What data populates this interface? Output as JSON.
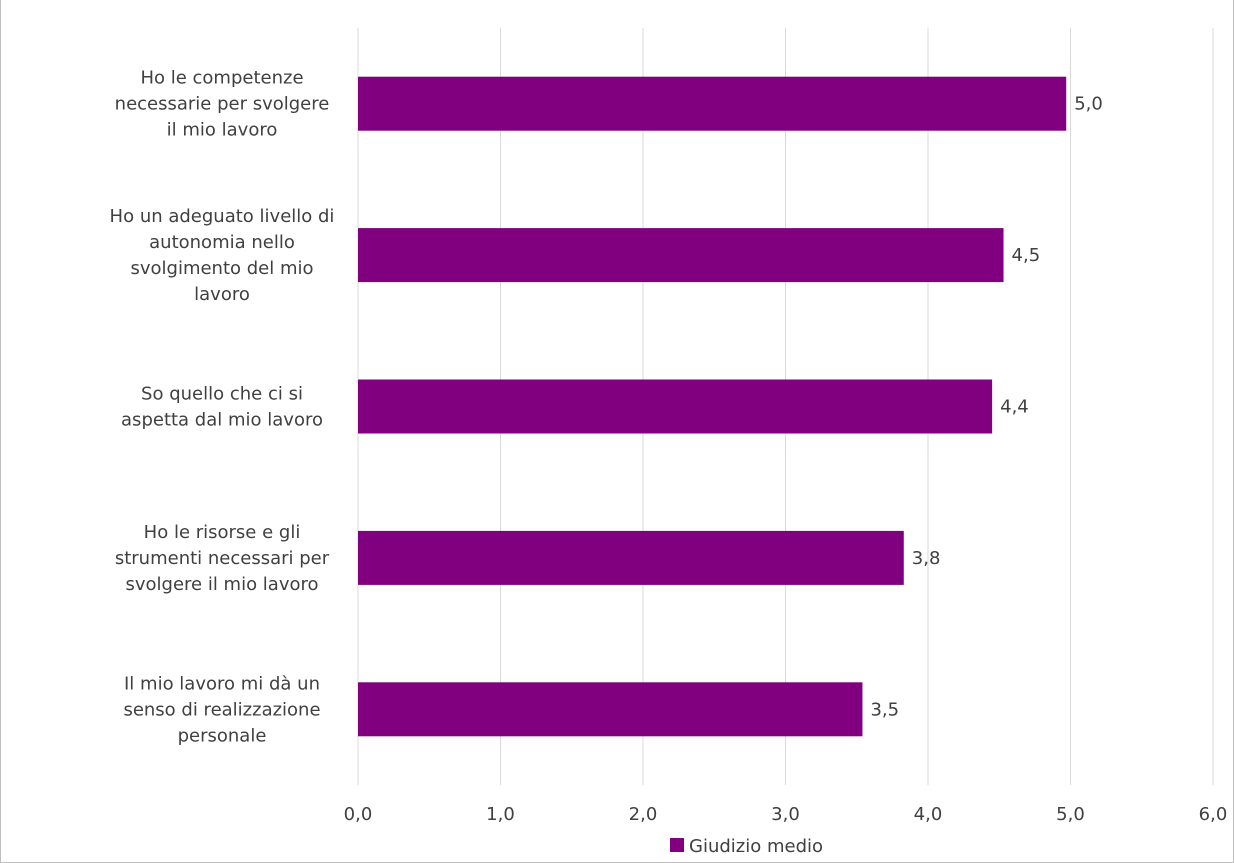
{
  "chart_data": {
    "type": "bar",
    "orientation": "horizontal",
    "categories": [
      [
        "Ho le competenze",
        "necessarie per svolgere",
        "il mio lavoro"
      ],
      [
        "Ho un adeguato livello di",
        "autonomia nello",
        "svolgimento del mio",
        "lavoro"
      ],
      [
        "So quello che ci si",
        "aspetta dal mio lavoro"
      ],
      [
        "Ho le risorse e gli",
        "strumenti necessari per",
        "svolgere il mio lavoro"
      ],
      [
        "Il mio lavoro mi dà un",
        "senso di realizzazione",
        "personale"
      ]
    ],
    "series": [
      {
        "name": "Giudizio medio",
        "values": [
          4.97,
          4.53,
          4.45,
          3.83,
          3.54
        ],
        "labels": [
          "5,0",
          "4,5",
          "4,4",
          "3,8",
          "3,5"
        ],
        "color": "#800080"
      }
    ],
    "xlim": [
      0,
      6
    ],
    "xticks": [
      0,
      1,
      2,
      3,
      4,
      5,
      6
    ],
    "xtick_labels": [
      "0,0",
      "1,0",
      "2,0",
      "3,0",
      "4,0",
      "5,0",
      "6,0"
    ],
    "grid": true,
    "gridline_color": "#d9d9d9",
    "legend_position": "bottom"
  }
}
